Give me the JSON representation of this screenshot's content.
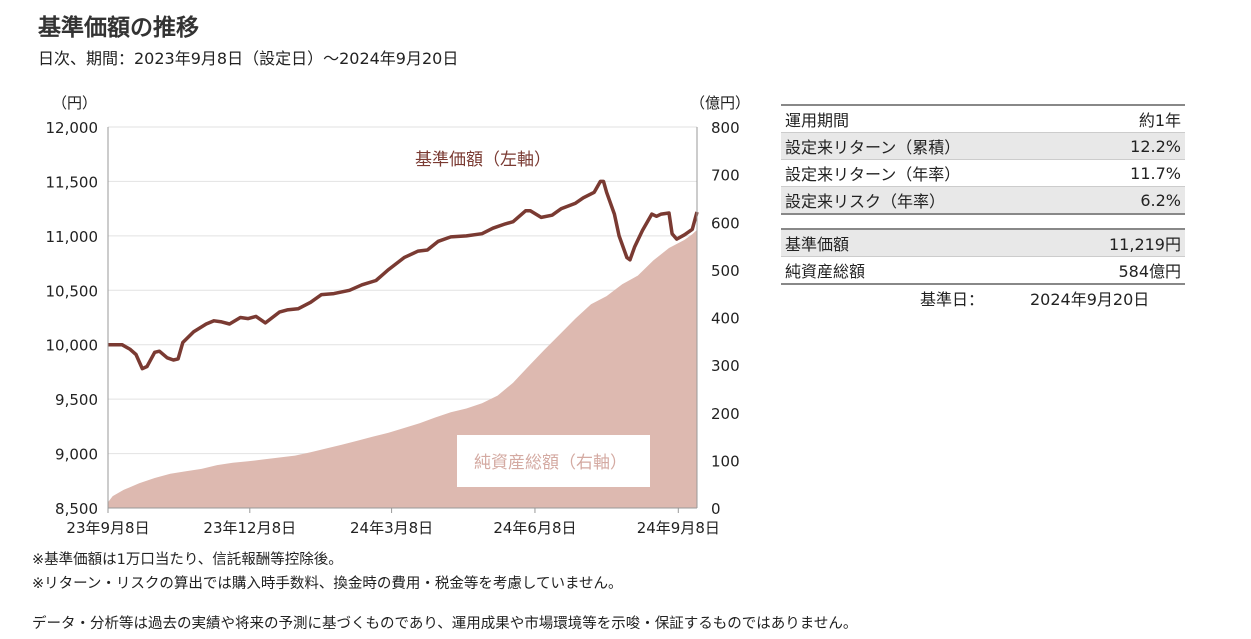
{
  "header": {
    "title": "基準価額の推移",
    "subtitle": "日次、期間：2023年9月8日（設定日）～2024年9月20日"
  },
  "chart_data": {
    "type": "line+area",
    "left_axis_unit": "（円）",
    "right_axis_unit": "（億円）",
    "left_ticks": [
      "12,000",
      "11,500",
      "11,000",
      "10,500",
      "10,000",
      "9,500",
      "9,000",
      "8,500"
    ],
    "left_tick_values": [
      12000,
      11500,
      11000,
      10500,
      10000,
      9500,
      9000,
      8500
    ],
    "right_ticks": [
      "800",
      "700",
      "600",
      "500",
      "400",
      "300",
      "200",
      "100",
      "0"
    ],
    "right_tick_values": [
      800,
      700,
      600,
      500,
      400,
      300,
      200,
      100,
      0
    ],
    "left_ylim": [
      8500,
      12000
    ],
    "right_ylim": [
      0,
      800
    ],
    "x_ticks": [
      "23年9月8日",
      "23年12月8日",
      "24年3月8日",
      "24年6月8日",
      "24年9月8日"
    ],
    "x_tick_days": [
      0,
      91,
      182,
      274,
      366
    ],
    "x_range_days": [
      0,
      378
    ],
    "nav_label": "基準価額（左軸）",
    "aum_label": "純資産総額（右軸）",
    "nav_color": "#7a3a32",
    "aum_color": "#ddb9b0",
    "nav_series": [
      [
        0,
        10000
      ],
      [
        5,
        10000
      ],
      [
        9,
        10000
      ],
      [
        14,
        9960
      ],
      [
        18,
        9910
      ],
      [
        22,
        9780
      ],
      [
        25,
        9800
      ],
      [
        30,
        9930
      ],
      [
        33,
        9940
      ],
      [
        38,
        9880
      ],
      [
        42,
        9860
      ],
      [
        45,
        9870
      ],
      [
        48,
        10020
      ],
      [
        55,
        10120
      ],
      [
        63,
        10190
      ],
      [
        68,
        10220
      ],
      [
        73,
        10210
      ],
      [
        78,
        10190
      ],
      [
        85,
        10250
      ],
      [
        90,
        10240
      ],
      [
        95,
        10260
      ],
      [
        101,
        10200
      ],
      [
        110,
        10300
      ],
      [
        115,
        10320
      ],
      [
        122,
        10330
      ],
      [
        130,
        10390
      ],
      [
        137,
        10460
      ],
      [
        145,
        10470
      ],
      [
        155,
        10500
      ],
      [
        163,
        10550
      ],
      [
        172,
        10590
      ],
      [
        180,
        10690
      ],
      [
        190,
        10800
      ],
      [
        199,
        10860
      ],
      [
        205,
        10870
      ],
      [
        212,
        10950
      ],
      [
        220,
        10990
      ],
      [
        230,
        11000
      ],
      [
        240,
        11020
      ],
      [
        247,
        11070
      ],
      [
        255,
        11110
      ],
      [
        260,
        11130
      ],
      [
        268,
        11230
      ],
      [
        271,
        11230
      ],
      [
        278,
        11170
      ],
      [
        285,
        11190
      ],
      [
        291,
        11250
      ],
      [
        300,
        11300
      ],
      [
        305,
        11350
      ],
      [
        312,
        11400
      ],
      [
        316,
        11500
      ],
      [
        318,
        11500
      ],
      [
        320,
        11400
      ],
      [
        325,
        11200
      ],
      [
        328,
        11000
      ],
      [
        333,
        10800
      ],
      [
        335,
        10780
      ],
      [
        338,
        10900
      ],
      [
        343,
        11050
      ],
      [
        349,
        11200
      ],
      [
        352,
        11180
      ],
      [
        355,
        11200
      ],
      [
        360,
        11210
      ],
      [
        362,
        11020
      ],
      [
        365,
        10970
      ],
      [
        370,
        11010
      ],
      [
        375,
        11060
      ],
      [
        378,
        11219
      ]
    ],
    "aum_series": [
      [
        0,
        12
      ],
      [
        3,
        25
      ],
      [
        10,
        38
      ],
      [
        20,
        52
      ],
      [
        30,
        63
      ],
      [
        40,
        72
      ],
      [
        50,
        77
      ],
      [
        60,
        82
      ],
      [
        70,
        90
      ],
      [
        80,
        95
      ],
      [
        90,
        98
      ],
      [
        100,
        102
      ],
      [
        110,
        106
      ],
      [
        120,
        110
      ],
      [
        130,
        117
      ],
      [
        140,
        125
      ],
      [
        150,
        133
      ],
      [
        160,
        141
      ],
      [
        170,
        150
      ],
      [
        180,
        158
      ],
      [
        190,
        168
      ],
      [
        200,
        178
      ],
      [
        210,
        190
      ],
      [
        220,
        201
      ],
      [
        230,
        209
      ],
      [
        240,
        220
      ],
      [
        250,
        236
      ],
      [
        260,
        263
      ],
      [
        270,
        298
      ],
      [
        280,
        332
      ],
      [
        290,
        365
      ],
      [
        300,
        398
      ],
      [
        310,
        428
      ],
      [
        320,
        445
      ],
      [
        330,
        470
      ],
      [
        340,
        488
      ],
      [
        350,
        520
      ],
      [
        360,
        546
      ],
      [
        370,
        563
      ],
      [
        375,
        575
      ],
      [
        378,
        584
      ]
    ]
  },
  "stats_period": [
    {
      "label": "運用期間",
      "value": "約1年"
    },
    {
      "label": "設定来リターン（累積）",
      "value": "12.2%"
    },
    {
      "label": "設定来リターン（年率）",
      "value": "11.7%"
    },
    {
      "label": "設定来リスク（年率）",
      "value": "6.2%"
    }
  ],
  "stats_nav": [
    {
      "label": "基準価額",
      "value": "11,219円"
    },
    {
      "label": "純資産総額",
      "value": "584億円"
    }
  ],
  "base_date": {
    "label": "基準日：",
    "value": "2024年9月20日"
  },
  "notes": {
    "n1": "※基準価額は1万口当たり、信託報酬等控除後。",
    "n2": "※リターン・リスクの算出では購入時手数料、換金時の費用・税金等を考慮していません。",
    "disclaimer": "データ・分析等は過去の実績や将来の予測に基づくものであり、運用成果や市場環境等を示唆・保証するものではありません。"
  }
}
